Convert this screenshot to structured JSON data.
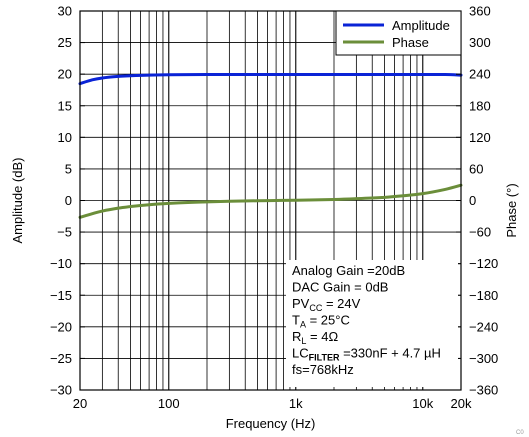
{
  "chart_data": {
    "type": "line",
    "xlabel": "Frequency (Hz)",
    "ylabel": "Amplitude (dB)",
    "y2label": "Phase (°)",
    "x_scale": "log",
    "xlim": [
      20,
      20000
    ],
    "ylim": [
      -30,
      30
    ],
    "y2lim": [
      -360,
      360
    ],
    "grid": true,
    "legend_position": "top-right",
    "x_ticks": [
      {
        "value": 20,
        "label": "20"
      },
      {
        "value": 100,
        "label": "100"
      },
      {
        "value": 1000,
        "label": "1k"
      },
      {
        "value": 10000,
        "label": "10k"
      },
      {
        "value": 20000,
        "label": "20k"
      }
    ],
    "y_ticks": [
      {
        "value": 30,
        "label": "30"
      },
      {
        "value": 25,
        "label": "25"
      },
      {
        "value": 20,
        "label": "20"
      },
      {
        "value": 15,
        "label": "15"
      },
      {
        "value": 10,
        "label": "10"
      },
      {
        "value": 5,
        "label": "5"
      },
      {
        "value": 0,
        "label": "0"
      },
      {
        "value": -5,
        "label": "−5"
      },
      {
        "value": -10,
        "label": "−10"
      },
      {
        "value": -15,
        "label": "−15"
      },
      {
        "value": -20,
        "label": "−20"
      },
      {
        "value": -25,
        "label": "−25"
      },
      {
        "value": -30,
        "label": "−30"
      }
    ],
    "y2_ticks": [
      {
        "value": 360,
        "label": "360"
      },
      {
        "value": 300,
        "label": "300"
      },
      {
        "value": 240,
        "label": "240"
      },
      {
        "value": 180,
        "label": "180"
      },
      {
        "value": 120,
        "label": "120"
      },
      {
        "value": 60,
        "label": "60"
      },
      {
        "value": 0,
        "label": "0"
      },
      {
        "value": -60,
        "label": "−60"
      },
      {
        "value": -120,
        "label": "−120"
      },
      {
        "value": -180,
        "label": "−180"
      },
      {
        "value": -240,
        "label": "−240"
      },
      {
        "value": -300,
        "label": "−300"
      },
      {
        "value": -360,
        "label": "−360"
      }
    ],
    "series": [
      {
        "name": "Amplitude",
        "axis": "left",
        "color": "#0a23d6",
        "x": [
          20,
          25,
          30,
          40,
          50,
          70,
          100,
          200,
          500,
          1000,
          2000,
          5000,
          10000,
          15000,
          20000
        ],
        "y": [
          18.5,
          19.1,
          19.4,
          19.65,
          19.75,
          19.85,
          19.9,
          19.95,
          19.95,
          19.95,
          19.95,
          19.95,
          19.95,
          19.95,
          19.85
        ]
      },
      {
        "name": "Phase",
        "axis": "right",
        "color": "#6b8e3a",
        "x": [
          20,
          25,
          30,
          40,
          50,
          70,
          100,
          150,
          200,
          300,
          500,
          700,
          1000,
          2000,
          3000,
          5000,
          7000,
          10000,
          15000,
          20000
        ],
        "y": [
          -32,
          -25,
          -20,
          -14.5,
          -11.5,
          -8,
          -5.5,
          -3.5,
          -2.5,
          -1.5,
          -0.5,
          0,
          0.5,
          2,
          3.5,
          6,
          9,
          13,
          21,
          29
        ]
      }
    ],
    "annotations": [
      {
        "parts": [
          {
            "t": "Analog Gain =20dB"
          }
        ]
      },
      {
        "parts": [
          {
            "t": "DAC Gain = 0dB"
          }
        ]
      },
      {
        "parts": [
          {
            "t": "PV"
          },
          {
            "t": "CC",
            "sub": true
          },
          {
            "t": " = 24V"
          }
        ]
      },
      {
        "parts": [
          {
            "t": "T"
          },
          {
            "t": "A",
            "sub": true
          },
          {
            "t": " = 25°C"
          }
        ]
      },
      {
        "parts": [
          {
            "t": "R"
          },
          {
            "t": "L",
            "sub": true
          },
          {
            "t": " = 4Ω"
          }
        ]
      },
      {
        "parts": [
          {
            "t": "LC"
          },
          {
            "t": "FILTER",
            "sub": true,
            "bold": true
          },
          {
            "t": " =330nF + 4.7 µH"
          }
        ]
      },
      {
        "parts": [
          {
            "t": "fs=768kHz"
          }
        ]
      }
    ],
    "corner_mark": "C0"
  }
}
